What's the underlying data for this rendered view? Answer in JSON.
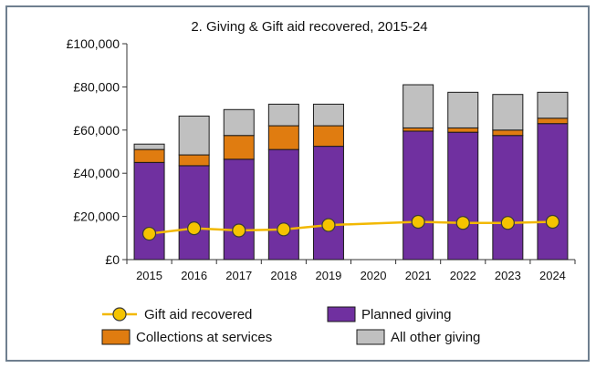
{
  "chart_data": {
    "type": "bar",
    "stacked": true,
    "title": "2. Giving & Gift aid recovered, 2015-24",
    "xlabel": "",
    "ylabel": "",
    "categories": [
      "2015",
      "2016",
      "2017",
      "2018",
      "2019",
      "2020",
      "2021",
      "2022",
      "2023",
      "2024"
    ],
    "ylim": [
      0,
      100000
    ],
    "yticks": [
      0,
      20000,
      40000,
      60000,
      80000,
      100000
    ],
    "ytick_labels": [
      "£0",
      "£20,000",
      "£40,000",
      "£60,000",
      "£80,000",
      "£100,000"
    ],
    "grid": false,
    "legend_position": "bottom",
    "series": [
      {
        "name": "Planned giving",
        "type": "bar",
        "color": "#7030a0",
        "values": [
          45000,
          43500,
          46500,
          51000,
          52500,
          null,
          59500,
          59000,
          57500,
          63000
        ]
      },
      {
        "name": "Collections at services",
        "type": "bar",
        "color": "#e07c10",
        "values": [
          6000,
          5000,
          11000,
          11000,
          9500,
          null,
          1500,
          2000,
          2500,
          2500
        ]
      },
      {
        "name": "All other giving",
        "type": "bar",
        "color": "#c0c0c0",
        "values": [
          2500,
          18000,
          12000,
          10000,
          10000,
          null,
          20000,
          16500,
          16500,
          12000
        ]
      },
      {
        "name": "Gift aid recovered",
        "type": "line",
        "color": "#f2b800",
        "marker_color": "#f5c400",
        "values": [
          12000,
          14500,
          13500,
          14000,
          16000,
          null,
          17500,
          17000,
          17000,
          17500
        ]
      }
    ]
  }
}
